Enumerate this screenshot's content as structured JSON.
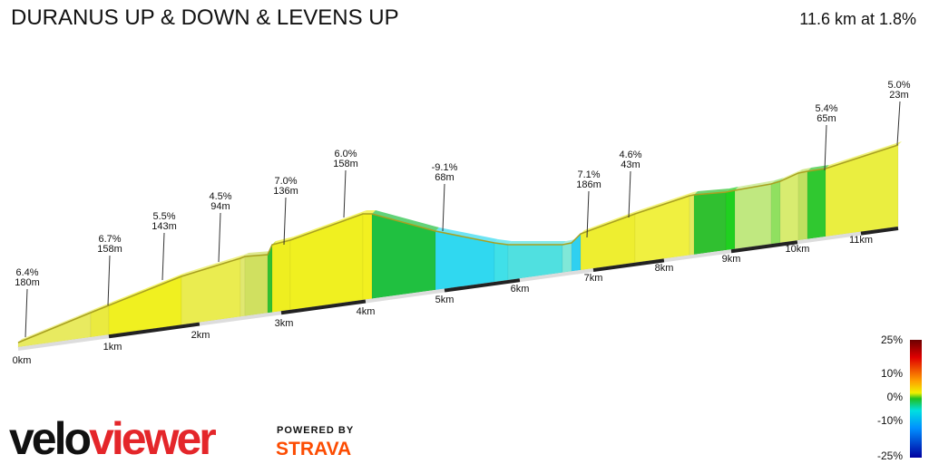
{
  "header": {
    "title": "DURANUS UP & DOWN & LEVENS UP",
    "summary": "11.6 km at 1.8%"
  },
  "annotations": [
    {
      "grade": "6.4%",
      "length": "180m"
    },
    {
      "grade": "6.7%",
      "length": "158m"
    },
    {
      "grade": "5.5%",
      "length": "143m"
    },
    {
      "grade": "4.5%",
      "length": "94m"
    },
    {
      "grade": "7.0%",
      "length": "136m"
    },
    {
      "grade": "6.0%",
      "length": "158m"
    },
    {
      "grade": "-9.1%",
      "length": "68m"
    },
    {
      "grade": "7.1%",
      "length": "186m"
    },
    {
      "grade": "4.6%",
      "length": "43m"
    },
    {
      "grade": "5.4%",
      "length": "65m"
    },
    {
      "grade": "5.0%",
      "length": "23m"
    }
  ],
  "distance_labels": [
    "0km",
    "1km",
    "2km",
    "3km",
    "4km",
    "5km",
    "6km",
    "7km",
    "8km",
    "9km",
    "10km",
    "11km"
  ],
  "legend": {
    "labels": [
      "25%",
      "10%",
      "0%",
      "-10%",
      "-25%"
    ]
  },
  "logo": {
    "velo": "velo",
    "viewer": "viewer",
    "powered_by": "POWERED BY",
    "strava": "STRAVA"
  }
}
